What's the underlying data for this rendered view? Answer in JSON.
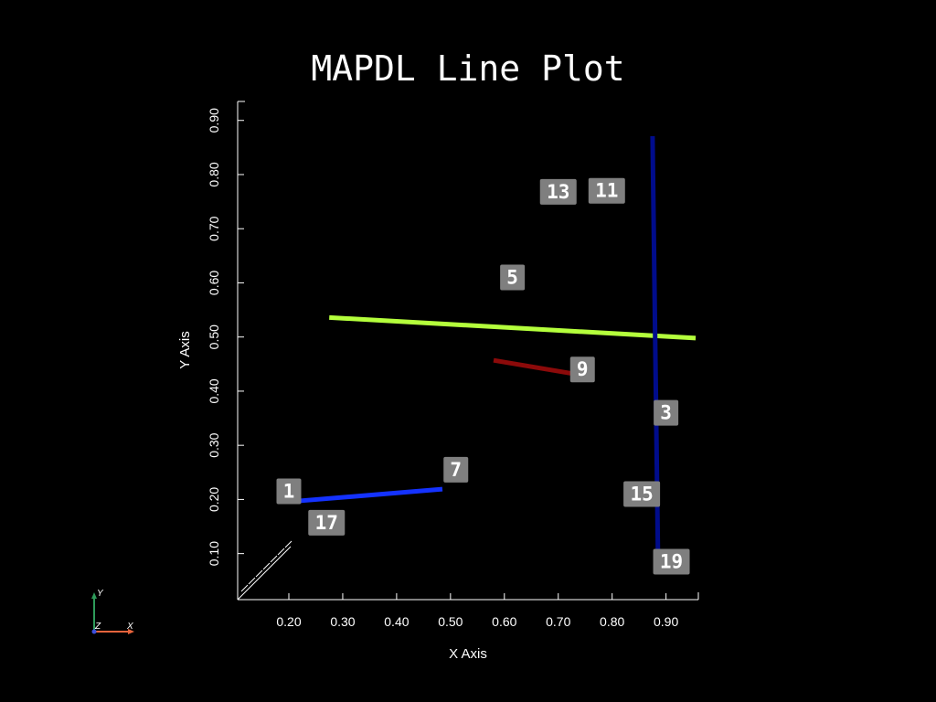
{
  "chart_data": {
    "type": "line",
    "title": "MAPDL Line Plot",
    "xlabel": "X Axis",
    "ylabel": "Y Axis",
    "xlim": [
      0.105,
      0.96
    ],
    "ylim": [
      0.015,
      0.935
    ],
    "xticks": [
      "0.20",
      "0.30",
      "0.40",
      "0.50",
      "0.60",
      "0.70",
      "0.80",
      "0.90"
    ],
    "yticks": [
      "0.10",
      "0.20",
      "0.30",
      "0.40",
      "0.50",
      "0.60",
      "0.70",
      "0.80",
      "0.90"
    ],
    "series": [
      {
        "color": "#b4ff3c",
        "points": [
          [
            0.275,
            0.536
          ],
          [
            0.955,
            0.498
          ]
        ]
      },
      {
        "color": "#000c8c",
        "points": [
          [
            0.875,
            0.871
          ],
          [
            0.885,
            0.102
          ]
        ]
      },
      {
        "color": "#1432ff",
        "points": [
          [
            0.215,
            0.197
          ],
          [
            0.485,
            0.219
          ]
        ]
      },
      {
        "color": "#8c0a0a",
        "points": [
          [
            0.58,
            0.457
          ],
          [
            0.735,
            0.431
          ]
        ]
      }
    ],
    "keypoint_labels": [
      {
        "text": "1",
        "x": 0.2,
        "y": 0.215
      },
      {
        "text": "3",
        "x": 0.9,
        "y": 0.36
      },
      {
        "text": "5",
        "x": 0.615,
        "y": 0.61
      },
      {
        "text": "7",
        "x": 0.51,
        "y": 0.255
      },
      {
        "text": "9",
        "x": 0.745,
        "y": 0.44
      },
      {
        "text": "11",
        "x": 0.79,
        "y": 0.77
      },
      {
        "text": "13",
        "x": 0.7,
        "y": 0.768
      },
      {
        "text": "15",
        "x": 0.855,
        "y": 0.21
      },
      {
        "text": "17",
        "x": 0.27,
        "y": 0.157
      },
      {
        "text": "19",
        "x": 0.91,
        "y": 0.085
      }
    ],
    "grid": false,
    "legend": "none"
  },
  "triad": {
    "x": "X",
    "y": "Y",
    "z": "Z"
  },
  "colors": {
    "background": "#000000",
    "axis": "#ffffff",
    "label_box": "#7f7f7f",
    "triad_x": "#e8643c",
    "triad_y": "#2e9b5a",
    "triad_z": "#3c50dc"
  }
}
